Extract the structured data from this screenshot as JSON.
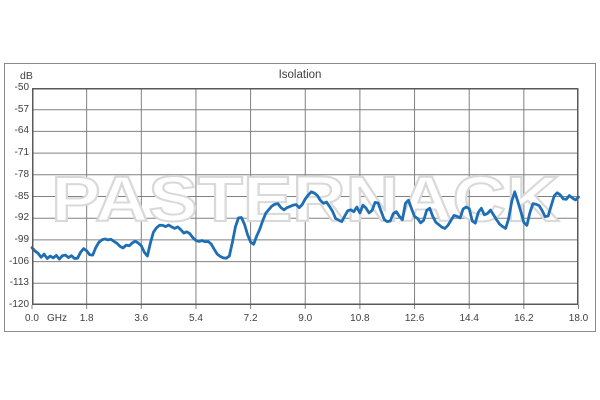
{
  "chart_data": {
    "type": "line",
    "title": "Isolation",
    "ylabel": "dB",
    "xlabel": "GHz",
    "grid": true,
    "legend": "none",
    "watermark": "PASTERNACK",
    "xlim": [
      0,
      18
    ],
    "ylim": [
      -120,
      -50
    ],
    "x_ticks": [
      0,
      1.8,
      3.6,
      5.4,
      7.2,
      9.0,
      10.8,
      12.6,
      14.4,
      16.2,
      18.0
    ],
    "x_tick_labels": [
      "0.0",
      "1.8",
      "3.6",
      "5.4",
      "7.2",
      "9.0",
      "10.8",
      "12.6",
      "14.4",
      "16.2",
      "18.0"
    ],
    "y_ticks": [
      -50,
      -57,
      -64,
      -71,
      -78,
      -85,
      -92,
      -99,
      -106,
      -113,
      -120
    ],
    "y_tick_labels": [
      "-50",
      "-57",
      "-64",
      "-71",
      "-78",
      "-85",
      "-92",
      "-99",
      "-106",
      "-113",
      "-120"
    ],
    "colors": {
      "curve": "#1e6eb6",
      "grid": "#808080",
      "plot_border": "#595959",
      "frame_border": "#8a8a8a",
      "text": "#404040",
      "watermark_stroke": "#d9d9d9",
      "watermark_fill": "#ffffff"
    },
    "series": [
      {
        "name": "Isolation",
        "x_start_ghz": 0,
        "x_step_ghz": 0.1,
        "values_db": [
          -101.5,
          -102.6,
          -103.3,
          -104.6,
          -103.6,
          -105.0,
          -104.2,
          -104.8,
          -104.0,
          -105.2,
          -104.1,
          -103.9,
          -104.7,
          -104.1,
          -105.0,
          -104.9,
          -103.0,
          -101.8,
          -102.5,
          -103.8,
          -103.9,
          -101.5,
          -99.8,
          -99.0,
          -98.7,
          -99.0,
          -98.8,
          -99.5,
          -100.1,
          -101.1,
          -101.6,
          -100.7,
          -100.9,
          -100.0,
          -99.4,
          -100.0,
          -100.9,
          -103.0,
          -104.2,
          -100.0,
          -96.5,
          -95.1,
          -94.3,
          -94.3,
          -94.7,
          -94.2,
          -94.8,
          -95.3,
          -94.8,
          -95.7,
          -96.8,
          -96.4,
          -97.0,
          -98.3,
          -99.2,
          -99.5,
          -99.2,
          -99.6,
          -99.5,
          -100.3,
          -102.0,
          -103.6,
          -104.3,
          -104.8,
          -104.9,
          -104.2,
          -99.8,
          -94.8,
          -91.9,
          -91.8,
          -94.0,
          -97.3,
          -99.7,
          -100.4,
          -97.8,
          -95.6,
          -92.8,
          -90.4,
          -89.2,
          -88.1,
          -87.5,
          -87.3,
          -88.6,
          -89.3,
          -88.6,
          -88.2,
          -87.8,
          -87.6,
          -88.6,
          -87.6,
          -85.8,
          -84.5,
          -83.5,
          -83.9,
          -84.7,
          -86.3,
          -87.2,
          -86.8,
          -88.2,
          -89.8,
          -92.1,
          -92.6,
          -93.1,
          -91.3,
          -89.6,
          -89.3,
          -89.9,
          -88.4,
          -90.3,
          -87.8,
          -88.7,
          -90.3,
          -89.5,
          -86.9,
          -87.1,
          -89.8,
          -92.4,
          -93.1,
          -92.9,
          -90.5,
          -89.9,
          -91.4,
          -92.5,
          -87.2,
          -86.2,
          -88.9,
          -91.4,
          -92.1,
          -93.5,
          -92.7,
          -89.5,
          -88.8,
          -91.4,
          -93.3,
          -94.1,
          -94.9,
          -95.3,
          -94.3,
          -92.7,
          -91.1,
          -91.4,
          -91.9,
          -89.0,
          -88.4,
          -88.9,
          -92.9,
          -93.6,
          -90.1,
          -88.8,
          -90.9,
          -90.5,
          -89.4,
          -90.9,
          -92.5,
          -93.9,
          -94.7,
          -95.3,
          -92.1,
          -86.6,
          -83.5,
          -86.6,
          -89.8,
          -93.4,
          -94.3,
          -90.2,
          -87.3,
          -87.5,
          -87.9,
          -89.5,
          -91.5,
          -91.3,
          -88.0,
          -84.8,
          -83.8,
          -84.5,
          -85.8,
          -85.9,
          -84.7,
          -85.5,
          -86.1,
          -85.2
        ]
      }
    ]
  }
}
